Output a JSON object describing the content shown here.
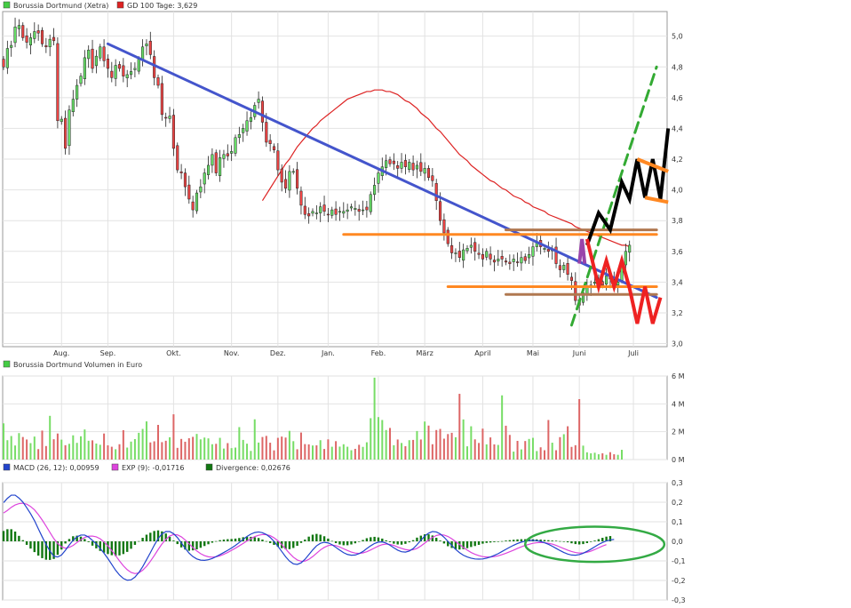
{
  "chart_data": [
    {
      "type": "candlestick",
      "panel": "price",
      "legend": [
        {
          "label": "Borussia Dortmund (Xetra)",
          "color": "#44cc44"
        },
        {
          "label": "GD 100 Tage: 3,629",
          "color": "#dd2222"
        }
      ],
      "months": [
        "Aug.",
        "Sep.",
        "Okt.",
        "Nov.",
        "Dez.",
        "Jan.",
        "Feb.",
        "März",
        "April",
        "Mai",
        "Juni",
        "Juli"
      ],
      "month_index": [
        15,
        27,
        44,
        59,
        71,
        84,
        97,
        109,
        124,
        137,
        149,
        163
      ],
      "y_ticks": [
        "3,0",
        "3,2",
        "3,4",
        "3,6",
        "3,8",
        "4,0",
        "4,2",
        "4,4",
        "4,6",
        "4,8",
        "5,0"
      ],
      "ylim": [
        2.98,
        5.16
      ],
      "closes": [
        4.8,
        4.92,
        4.94,
        5.06,
        5.07,
        4.99,
        4.96,
        4.99,
        5.03,
        5.02,
        4.95,
        4.93,
        4.98,
        4.97,
        4.45,
        4.46,
        4.27,
        4.52,
        4.59,
        4.68,
        4.74,
        4.86,
        4.91,
        4.79,
        4.87,
        4.93,
        4.84,
        4.79,
        4.73,
        4.81,
        4.79,
        4.74,
        4.75,
        4.77,
        4.79,
        4.85,
        4.93,
        4.95,
        4.88,
        4.73,
        4.68,
        4.49,
        4.47,
        4.48,
        4.27,
        4.13,
        4.11,
        4.02,
        3.94,
        3.87,
        3.98,
        4.02,
        4.11,
        4.16,
        4.23,
        4.11,
        4.21,
        4.23,
        4.22,
        4.25,
        4.34,
        4.36,
        4.4,
        4.45,
        4.47,
        4.55,
        4.59,
        4.44,
        4.31,
        4.3,
        4.26,
        4.13,
        4.05,
        4.01,
        4.12,
        4.12,
        4.01,
        3.9,
        3.84,
        3.83,
        3.86,
        3.85,
        3.89,
        3.86,
        3.84,
        3.87,
        3.84,
        3.86,
        3.86,
        3.87,
        3.89,
        3.88,
        3.86,
        3.87,
        3.87,
        3.97,
        4.03,
        4.11,
        4.15,
        4.19,
        4.17,
        4.17,
        4.14,
        4.18,
        4.15,
        4.18,
        4.13,
        4.16,
        4.12,
        4.14,
        4.08,
        4.06,
        3.93,
        3.8,
        3.72,
        3.65,
        3.59,
        3.59,
        3.56,
        3.61,
        3.62,
        3.64,
        3.6,
        3.58,
        3.55,
        3.6,
        3.55,
        3.53,
        3.55,
        3.55,
        3.53,
        3.52,
        3.55,
        3.53,
        3.56,
        3.54,
        3.58,
        3.63,
        3.66,
        3.63,
        3.62,
        3.6,
        3.61,
        3.52,
        3.48,
        3.51,
        3.45,
        3.41,
        3.28,
        3.25,
        3.33,
        3.37,
        3.38,
        3.4,
        3.41,
        3.38,
        3.44,
        3.42,
        3.38,
        3.4,
        3.53,
        3.6,
        3.64
      ],
      "sma100": [
        3.93,
        3.97,
        4.01,
        4.05,
        4.09,
        4.13,
        4.17,
        4.2,
        4.24,
        4.28,
        4.31,
        4.34,
        4.37,
        4.4,
        4.42,
        4.45,
        4.47,
        4.49,
        4.51,
        4.53,
        4.55,
        4.57,
        4.59,
        4.6,
        4.61,
        4.62,
        4.63,
        4.64,
        4.64,
        4.65,
        4.65,
        4.65,
        4.64,
        4.64,
        4.63,
        4.62,
        4.6,
        4.58,
        4.57,
        4.55,
        4.53,
        4.5,
        4.48,
        4.46,
        4.43,
        4.4,
        4.38,
        4.35,
        4.32,
        4.29,
        4.26,
        4.23,
        4.21,
        4.19,
        4.16,
        4.14,
        4.12,
        4.1,
        4.08,
        4.06,
        4.05,
        4.03,
        4.01,
        4.0,
        3.98,
        3.96,
        3.95,
        3.94,
        3.92,
        3.91,
        3.89,
        3.88,
        3.87,
        3.86,
        3.84,
        3.83,
        3.82,
        3.81,
        3.8,
        3.79,
        3.78,
        3.76,
        3.75,
        3.74,
        3.73,
        3.72,
        3.71,
        3.7,
        3.69,
        3.68,
        3.67,
        3.66,
        3.65,
        3.64,
        3.64,
        3.63
      ],
      "trendlines": [
        {
          "name": "downtrend",
          "color": "#4455cc",
          "points": [
            [
              27,
              4.95
            ],
            [
              169,
              3.3
            ]
          ]
        },
        {
          "name": "uptrend",
          "color": "#33aa33",
          "dashed": true,
          "points": [
            [
              147,
              3.12
            ],
            [
              169,
              4.8
            ]
          ]
        },
        {
          "name": "resistance",
          "color": "#ff8822",
          "points": [
            [
              88,
              3.71
            ],
            [
              169,
              3.71
            ]
          ]
        },
        {
          "name": "support",
          "color": "#ff8822",
          "points": [
            [
              115,
              3.37
            ],
            [
              169,
              3.37
            ]
          ]
        },
        {
          "name": "zone-top",
          "color": "#b07850",
          "points": [
            [
              130,
              3.74
            ],
            [
              169,
              3.74
            ]
          ]
        },
        {
          "name": "zone-bottom",
          "color": "#b07850",
          "points": [
            [
              130,
              3.32
            ],
            [
              169,
              3.32
            ]
          ]
        }
      ],
      "scenarios": [
        {
          "name": "bullish",
          "color": "#000000",
          "points": [
            [
              151,
              3.64
            ],
            [
              154,
              3.85
            ],
            [
              157,
              3.74
            ],
            [
              160,
              4.05
            ],
            [
              162,
              3.94
            ],
            [
              164,
              4.2
            ],
            [
              166,
              3.95
            ],
            [
              168,
              4.2
            ],
            [
              170,
              3.94
            ],
            [
              172,
              4.4
            ]
          ]
        },
        {
          "name": "bearish",
          "color": "#ee2222",
          "points": [
            [
              151,
              3.68
            ],
            [
              154,
              3.37
            ],
            [
              156,
              3.54
            ],
            [
              158,
              3.37
            ],
            [
              160,
              3.54
            ],
            [
              162,
              3.36
            ],
            [
              164,
              3.13
            ],
            [
              166,
              3.37
            ],
            [
              168,
              3.13
            ],
            [
              170,
              3.3
            ]
          ]
        },
        {
          "name": "near-term",
          "color": "#9944aa",
          "points": [
            [
              149,
              3.52
            ],
            [
              149.7,
              3.68
            ],
            [
              150.4,
              3.52
            ]
          ]
        },
        {
          "name": "channel-top",
          "color": "#ff8822",
          "points": [
            [
              164,
              4.2
            ],
            [
              172,
              4.12
            ]
          ]
        },
        {
          "name": "channel-bottom",
          "color": "#ff8822",
          "points": [
            [
              166,
              3.95
            ],
            [
              172,
              3.92
            ]
          ]
        }
      ]
    },
    {
      "type": "bar",
      "panel": "volume",
      "legend": [
        {
          "label": "Borussia Dortmund Volumen in Euro",
          "color": "#44cc44"
        }
      ],
      "y_ticks": [
        "0 M",
        "2 M",
        "4 M",
        "6 M"
      ],
      "ylim": [
        0,
        6
      ],
      "volumes": [
        2.6,
        1.39,
        1.69,
        1.01,
        1.9,
        1.62,
        1.44,
        1.18,
        1.65,
        0.75,
        2.08,
        0.97,
        3.14,
        1.46,
        1.87,
        1.43,
        1.03,
        1.13,
        1.74,
        1.2,
        1.67,
        2.16,
        1.35,
        1.38,
        1.15,
        1.06,
        1.87,
        1.02,
        0.92,
        0.74,
        1.1,
        2.11,
        0.86,
        1.29,
        1.47,
        1.92,
        2.2,
        2.74,
        1.23,
        1.31,
        2.49,
        1.25,
        1.35,
        1.6,
        3.25,
        0.84,
        1.48,
        1.28,
        1.53,
        1.63,
        1.84,
        1.45,
        1.58,
        1.52,
        1.1,
        1.13,
        1.56,
        0.79,
        1.18,
        0.82,
        0.86,
        2.33,
        1.41,
        1.14,
        0.62,
        2.89,
        1.22,
        1.62,
        1.7,
        1.21,
        0.66,
        1.56,
        1.65,
        1.58,
        2.06,
        1.32,
        0.74,
        1.94,
        1.11,
        1.09,
        1.01,
        1.02,
        1.39,
        0.76,
        1.45,
        0.92,
        1.32,
        0.93,
        1.1,
        0.92,
        0.67,
        0.77,
        1.06,
        0.91,
        1.24,
        2.97,
        5.88,
        3.05,
        2.84,
        2.12,
        2.27,
        1.03,
        1.44,
        1.19,
        0.96,
        1.39,
        1.41,
        2.05,
        1.44,
        2.73,
        2.44,
        1.1,
        2.12,
        2.2,
        1.5,
        1.83,
        1.92,
        1.6,
        4.72,
        2.88,
        0.95,
        2.39,
        1.45,
        1.19,
        2.22,
        1.09,
        1.59,
        1.09,
        1.05,
        4.61,
        2.43,
        1.77,
        0.57,
        1.34,
        0.73,
        1.33,
        1.48,
        1.56,
        0.61,
        0.88,
        0.67,
        2.84,
        1.21,
        0.67,
        1.61,
        1.82,
        2.39,
        0.91,
        1.03,
        4.34,
        1.0,
        0.52,
        0.45,
        0.49,
        0.38,
        0.45,
        0.34,
        0.53,
        0.38,
        0.34,
        0.7
      ]
    },
    {
      "type": "line",
      "panel": "macd",
      "legend": [
        {
          "label": "MACD (26, 12): 0,00959",
          "color": "#2244cc"
        },
        {
          "label": "EXP (9): -0,01716",
          "color": "#dd44dd"
        },
        {
          "label": "Divergence: 0,02676",
          "color": "#117711"
        }
      ],
      "y_ticks": [
        "-0,3",
        "-0,2",
        "-0,1",
        "0,0",
        "0,1",
        "0,2",
        "0,3"
      ],
      "ylim": [
        -0.3,
        0.3
      ],
      "macd": [
        0.198,
        0.22,
        0.236,
        0.236,
        0.221,
        0.201,
        0.172,
        0.141,
        0.106,
        0.064,
        0.023,
        -0.016,
        -0.049,
        -0.076,
        -0.08,
        -0.07,
        -0.046,
        -0.019,
        0.005,
        0.023,
        0.032,
        0.032,
        0.022,
        0.005,
        -0.013,
        -0.036,
        -0.061,
        -0.088,
        -0.118,
        -0.148,
        -0.172,
        -0.19,
        -0.199,
        -0.197,
        -0.183,
        -0.16,
        -0.13,
        -0.094,
        -0.058,
        -0.02,
        0.014,
        0.038,
        0.05,
        0.05,
        0.039,
        0.019,
        -0.008,
        -0.035,
        -0.06,
        -0.078,
        -0.09,
        -0.096,
        -0.097,
        -0.094,
        -0.088,
        -0.078,
        -0.068,
        -0.057,
        -0.046,
        -0.034,
        -0.021,
        -0.006,
        0.01,
        0.025,
        0.037,
        0.045,
        0.048,
        0.044,
        0.035,
        0.02,
        0.0,
        -0.025,
        -0.052,
        -0.079,
        -0.101,
        -0.115,
        -0.118,
        -0.11,
        -0.092,
        -0.068,
        -0.044,
        -0.023,
        -0.01,
        -0.005,
        -0.008,
        -0.017,
        -0.031,
        -0.045,
        -0.058,
        -0.067,
        -0.071,
        -0.07,
        -0.063,
        -0.052,
        -0.037,
        -0.023,
        -0.011,
        -0.004,
        -0.003,
        -0.009,
        -0.02,
        -0.033,
        -0.045,
        -0.053,
        -0.055,
        -0.05,
        -0.037,
        -0.017,
        0.005,
        0.027,
        0.042,
        0.05,
        0.048,
        0.038,
        0.021,
        0.0,
        -0.021,
        -0.041,
        -0.058,
        -0.071,
        -0.08,
        -0.086,
        -0.09,
        -0.091,
        -0.09,
        -0.086,
        -0.08,
        -0.072,
        -0.063,
        -0.052,
        -0.041,
        -0.03,
        -0.02,
        -0.011,
        -0.004,
        0.001,
        0.004,
        0.005,
        0.003,
        -0.001,
        -0.007,
        -0.015,
        -0.025,
        -0.036,
        -0.047,
        -0.057,
        -0.065,
        -0.07,
        -0.071,
        -0.068,
        -0.061,
        -0.051,
        -0.04,
        -0.028,
        -0.016,
        -0.006,
        0.002,
        0.007,
        0.01
      ],
      "signal": [
        0.145,
        0.158,
        0.174,
        0.186,
        0.193,
        0.195,
        0.19,
        0.178,
        0.161,
        0.137,
        0.109,
        0.078,
        0.046,
        0.014,
        -0.011,
        -0.028,
        -0.035,
        -0.031,
        -0.021,
        -0.006,
        0.008,
        0.02,
        0.026,
        0.027,
        0.023,
        0.013,
        -0.003,
        -0.023,
        -0.047,
        -0.073,
        -0.1,
        -0.125,
        -0.145,
        -0.159,
        -0.165,
        -0.161,
        -0.148,
        -0.128,
        -0.102,
        -0.073,
        -0.042,
        -0.013,
        0.01,
        0.027,
        0.035,
        0.033,
        0.023,
        0.007,
        -0.012,
        -0.032,
        -0.049,
        -0.063,
        -0.073,
        -0.079,
        -0.081,
        -0.079,
        -0.074,
        -0.066,
        -0.057,
        -0.046,
        -0.035,
        -0.023,
        -0.011,
        0.002,
        0.014,
        0.024,
        0.031,
        0.035,
        0.034,
        0.029,
        0.018,
        0.003,
        -0.017,
        -0.039,
        -0.061,
        -0.081,
        -0.095,
        -0.102,
        -0.101,
        -0.092,
        -0.078,
        -0.061,
        -0.044,
        -0.031,
        -0.022,
        -0.019,
        -0.022,
        -0.029,
        -0.038,
        -0.047,
        -0.055,
        -0.06,
        -0.062,
        -0.059,
        -0.053,
        -0.044,
        -0.034,
        -0.024,
        -0.017,
        -0.014,
        -0.016,
        -0.021,
        -0.029,
        -0.036,
        -0.042,
        -0.045,
        -0.043,
        -0.036,
        -0.024,
        -0.009,
        0.006,
        0.02,
        0.03,
        0.034,
        0.032,
        0.025,
        0.013,
        -0.001,
        -0.016,
        -0.031,
        -0.045,
        -0.057,
        -0.066,
        -0.073,
        -0.078,
        -0.08,
        -0.08,
        -0.078,
        -0.074,
        -0.068,
        -0.061,
        -0.053,
        -0.045,
        -0.036,
        -0.028,
        -0.021,
        -0.015,
        -0.01,
        -0.007,
        -0.006,
        -0.007,
        -0.01,
        -0.014,
        -0.021,
        -0.029,
        -0.037,
        -0.045,
        -0.052,
        -0.057,
        -0.06,
        -0.059,
        -0.056,
        -0.05,
        -0.042,
        -0.033,
        -0.024,
        -0.017
      ],
      "divergence": [
        0.053,
        0.062,
        0.062,
        0.05,
        0.028,
        0.006,
        -0.018,
        -0.037,
        -0.055,
        -0.073,
        -0.086,
        -0.094,
        -0.095,
        -0.09,
        -0.069,
        -0.042,
        -0.011,
        0.012,
        0.026,
        0.029,
        0.024,
        0.012,
        -0.004,
        -0.022,
        -0.036,
        -0.049,
        -0.058,
        -0.065,
        -0.071,
        -0.075,
        -0.072,
        -0.065,
        -0.054,
        -0.038,
        -0.018,
        0.001,
        0.018,
        0.034,
        0.044,
        0.053,
        0.056,
        0.051,
        0.04,
        0.023,
        0.004,
        -0.014,
        -0.031,
        -0.042,
        -0.048,
        -0.046,
        -0.041,
        -0.033,
        -0.024,
        -0.015,
        -0.007,
        0.001,
        0.006,
        0.009,
        0.011,
        0.012,
        0.014,
        0.017,
        0.021,
        0.023,
        0.023,
        0.021,
        0.017,
        0.009,
        0.001,
        -0.009,
        -0.018,
        -0.028,
        -0.035,
        -0.04,
        -0.04,
        -0.034,
        -0.023,
        -0.008,
        0.009,
        0.024,
        0.034,
        0.038,
        0.034,
        0.026,
        0.014,
        0.002,
        -0.009,
        -0.016,
        -0.02,
        -0.02,
        -0.016,
        -0.01,
        -0.001,
        0.007,
        0.016,
        0.021,
        0.023,
        0.02,
        0.014,
        0.005,
        -0.004,
        -0.012,
        -0.016,
        -0.017,
        -0.013,
        -0.005,
        0.006,
        0.019,
        0.029,
        0.036,
        0.036,
        0.03,
        0.018,
        0.004,
        -0.011,
        -0.025,
        -0.034,
        -0.04,
        -0.042,
        -0.04,
        -0.035,
        -0.029,
        -0.024,
        -0.018,
        -0.012,
        -0.008,
        -0.006,
        -0.004,
        -0.002,
        0.001,
        0.004,
        0.006,
        0.008,
        0.01,
        0.011,
        0.011,
        0.011,
        0.011,
        0.01,
        0.009,
        0.007,
        0.006,
        0.004,
        0.003,
        0.001,
        -0.001,
        -0.005,
        -0.01,
        -0.014,
        -0.016,
        -0.014,
        -0.009,
        -0.003,
        0.004,
        0.011,
        0.018,
        0.024,
        0.027
      ],
      "annotation": {
        "shape": "ellipse",
        "color": "#33aa44",
        "x_index": [
          135,
          171
        ],
        "y_range": [
          -0.105,
          0.075
        ]
      }
    }
  ]
}
